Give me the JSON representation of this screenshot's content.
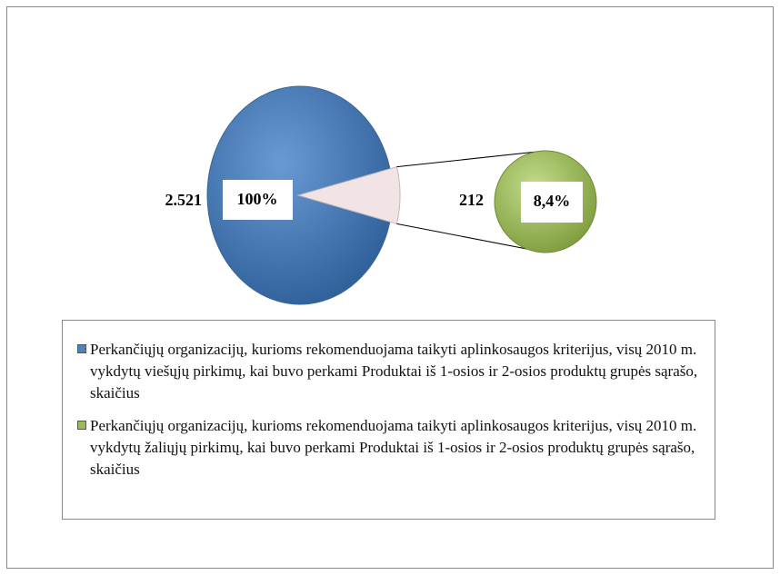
{
  "chart_data": {
    "type": "pie",
    "series": [
      {
        "name": "Perkančiųjų organizacijų, kurioms rekomenduojama taikyti aplinkosaugos kriterijus, visų 2010 m. vykdytų viešųjų pirkimų, kai buvo perkami Produktai iš 1-osios ir 2-osios produktų grupės sąrašo, skaičius",
        "color": "#4f81bd",
        "values": [
          2521
        ],
        "value_labels": [
          "2.521"
        ],
        "percents": [
          100
        ],
        "percent_labels": [
          "100%"
        ]
      },
      {
        "name": "Perkančiųjų organizacijų, kurioms rekomenduojama taikyti aplinkosaugos kriterijus, visų 2010 m. vykdytų žaliųjų pirkimų, kai buvo perkami Produktai iš 1-osios ir 2-osios produktų grupės sąrašo, skaičius",
        "color": "#9bbb59",
        "values": [
          212
        ],
        "value_labels": [
          "212"
        ],
        "percents": [
          8.4
        ],
        "percent_labels": [
          "8,4%"
        ]
      }
    ],
    "wedge_color": "#f2e4e4"
  }
}
